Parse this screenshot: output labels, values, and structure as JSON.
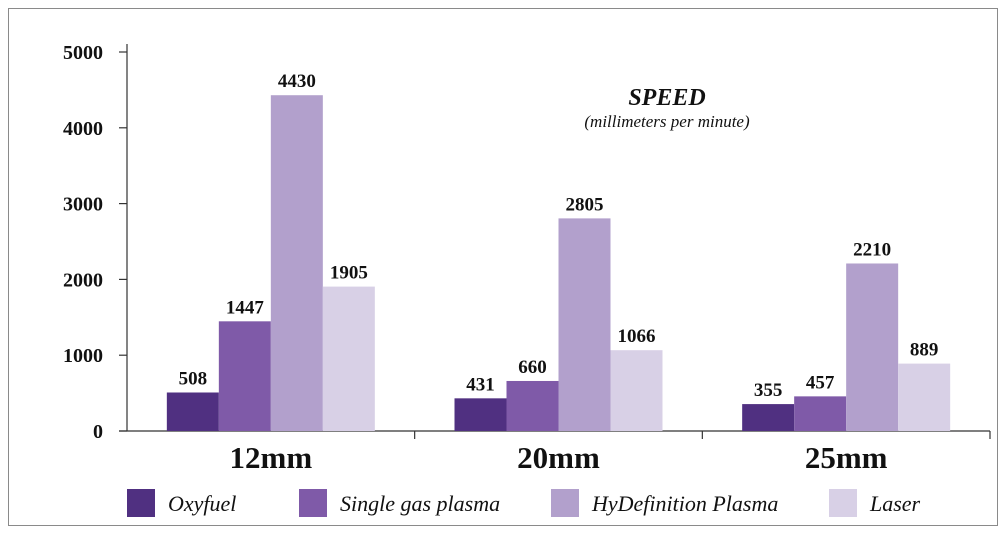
{
  "chart_data": {
    "type": "bar",
    "title": "SPEED",
    "subtitle": "(millimeters per minute)",
    "categories": [
      "12mm",
      "20mm",
      "25mm"
    ],
    "ylim": [
      0,
      5000
    ],
    "yticks": [
      0,
      1000,
      2000,
      3000,
      4000,
      5000
    ],
    "grid": false,
    "legend_position": "bottom",
    "series": [
      {
        "name": "Oxyfuel",
        "color": "#503081",
        "values": [
          508,
          431,
          355
        ]
      },
      {
        "name": "Single gas plasma",
        "color": "#7f5aa8",
        "values": [
          1447,
          660,
          457
        ]
      },
      {
        "name": "HyDefinition Plasma",
        "color": "#b2a0cc",
        "values": [
          4430,
          2805,
          2210
        ]
      },
      {
        "name": "Laser",
        "color": "#d8d0e6",
        "values": [
          1905,
          1066,
          889
        ]
      }
    ]
  }
}
